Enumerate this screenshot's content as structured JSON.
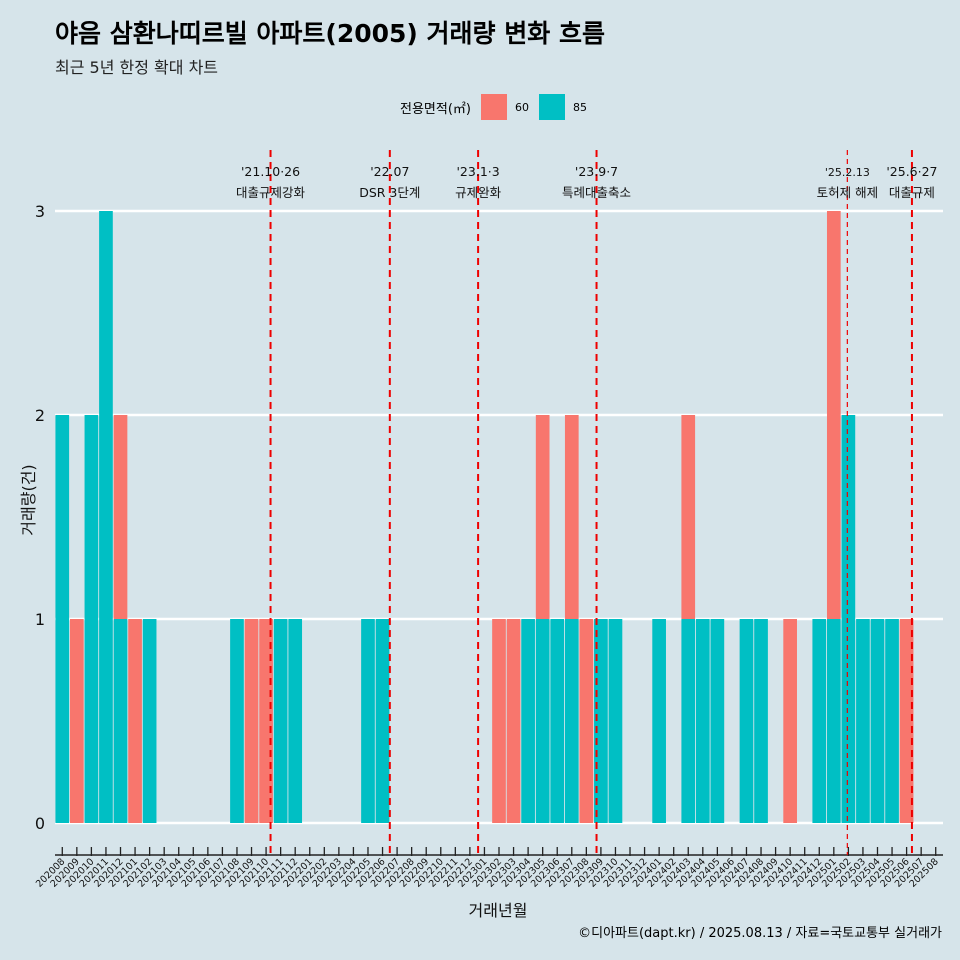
{
  "header": {
    "title": "야음 삼환나띠르빌 아파트(2005) 거래량 변화 흐름",
    "subtitle": "최근 5년 한정 확대 차트"
  },
  "legend": {
    "title": "전용면적(㎡)",
    "items": [
      {
        "label": "60",
        "color": "#f8766d"
      },
      {
        "label": "85",
        "color": "#00bfc4"
      }
    ]
  },
  "caption": "©디아파트(dapt.kr) / 2025.08.13 / 자료=국토교통부 실거래가",
  "chart_data": {
    "type": "bar",
    "stacked": true,
    "title": "야음 삼환나띠르빌 아파트(2005) 거래량 변화 흐름",
    "xlabel": "거래년월",
    "ylabel": "거래량(건)",
    "ylim": [
      0,
      3
    ],
    "yticks": [
      0,
      1,
      2,
      3
    ],
    "grid": "horizontal",
    "legend_position": "top",
    "categories": [
      "202008",
      "202009",
      "202010",
      "202011",
      "202012",
      "202101",
      "202102",
      "202103",
      "202104",
      "202105",
      "202106",
      "202107",
      "202108",
      "202109",
      "202110",
      "202111",
      "202112",
      "202201",
      "202202",
      "202203",
      "202204",
      "202205",
      "202206",
      "202207",
      "202208",
      "202209",
      "202210",
      "202211",
      "202212",
      "202301",
      "202302",
      "202303",
      "202304",
      "202305",
      "202306",
      "202307",
      "202308",
      "202309",
      "202310",
      "202311",
      "202312",
      "202401",
      "202402",
      "202403",
      "202404",
      "202405",
      "202406",
      "202407",
      "202408",
      "202409",
      "202410",
      "202411",
      "202412",
      "202501",
      "202502",
      "202503",
      "202504",
      "202505",
      "202506",
      "202507",
      "202508"
    ],
    "transactions": [
      {
        "month": "202008",
        "area": "85"
      },
      {
        "month": "202008",
        "area": "85"
      },
      {
        "month": "202009",
        "area": "60"
      },
      {
        "month": "202010",
        "area": "85"
      },
      {
        "month": "202010",
        "area": "85"
      },
      {
        "month": "202011",
        "area": "85"
      },
      {
        "month": "202011",
        "area": "85"
      },
      {
        "month": "202011",
        "area": "85"
      },
      {
        "month": "202012",
        "area": "60"
      },
      {
        "month": "202012",
        "area": "85"
      },
      {
        "month": "202101",
        "area": "60"
      },
      {
        "month": "202102",
        "area": "85"
      },
      {
        "month": "202108",
        "area": "85"
      },
      {
        "month": "202109",
        "area": "60"
      },
      {
        "month": "202110",
        "area": "60"
      },
      {
        "month": "202111",
        "area": "85"
      },
      {
        "month": "202112",
        "area": "85"
      },
      {
        "month": "202205",
        "area": "85"
      },
      {
        "month": "202206",
        "area": "85"
      },
      {
        "month": "202302",
        "area": "60"
      },
      {
        "month": "202303",
        "area": "60"
      },
      {
        "month": "202304",
        "area": "85"
      },
      {
        "month": "202305",
        "area": "60"
      },
      {
        "month": "202305",
        "area": "85"
      },
      {
        "month": "202306",
        "area": "85"
      },
      {
        "month": "202307",
        "area": "60"
      },
      {
        "month": "202307",
        "area": "85"
      },
      {
        "month": "202308",
        "area": "60"
      },
      {
        "month": "202309",
        "area": "85"
      },
      {
        "month": "202310",
        "area": "85"
      },
      {
        "month": "202401",
        "area": "85"
      },
      {
        "month": "202403",
        "area": "60"
      },
      {
        "month": "202403",
        "area": "85"
      },
      {
        "month": "202404",
        "area": "85"
      },
      {
        "month": "202405",
        "area": "85"
      },
      {
        "month": "202407",
        "area": "85"
      },
      {
        "month": "202408",
        "area": "85"
      },
      {
        "month": "202410",
        "area": "60"
      },
      {
        "month": "202412",
        "area": "85"
      },
      {
        "month": "202501",
        "area": "60"
      },
      {
        "month": "202501",
        "area": "60"
      },
      {
        "month": "202501",
        "area": "85"
      },
      {
        "month": "202502",
        "area": "85"
      },
      {
        "month": "202502",
        "area": "85"
      },
      {
        "month": "202503",
        "area": "85"
      },
      {
        "month": "202504",
        "area": "85"
      },
      {
        "month": "202505",
        "area": "85"
      },
      {
        "month": "202506",
        "area": "60"
      }
    ],
    "events": [
      {
        "date": "2021-10-26",
        "date_label": "'21.10·26",
        "label": "대출규제강화",
        "style": "thick"
      },
      {
        "date": "2022-07-01",
        "date_label": "'22.07",
        "label": "DSR 3단계",
        "style": "thick"
      },
      {
        "date": "2023-01-03",
        "date_label": "'23.1·3",
        "label": "규제완화",
        "style": "thick"
      },
      {
        "date": "2023-09-07",
        "date_label": "'23.9·7",
        "label": "특례대출축소",
        "style": "thick"
      },
      {
        "date": "2025-02-13",
        "date_label": "'25.2.13",
        "label": "토허제 해제",
        "style": "thin"
      },
      {
        "date": "2025-06-27",
        "date_label": "'25.6·27",
        "label": "대출규제",
        "style": "thick"
      }
    ]
  }
}
